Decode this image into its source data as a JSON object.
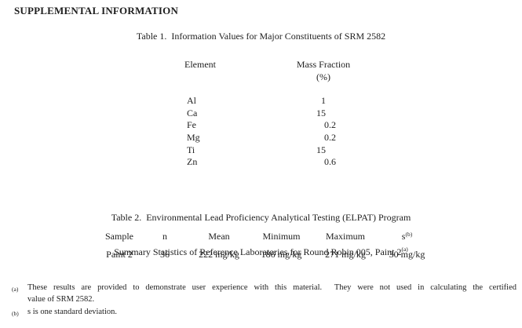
{
  "page": {
    "title": "SUPPLEMENTAL INFORMATION"
  },
  "table1": {
    "caption": "Table 1.  Information Values for Major Constituents of SRM 2582",
    "col1_header": "Element",
    "col2_header_line1": "Mass Fraction",
    "col2_header_line2": "(%)",
    "rows": [
      {
        "element": "Al",
        "value": "1"
      },
      {
        "element": "Ca",
        "value": "15"
      },
      {
        "element": "Fe",
        "value": "0.2"
      },
      {
        "element": "Mg",
        "value": "0.2"
      },
      {
        "element": "Ti",
        "value": "15"
      },
      {
        "element": "Zn",
        "value": "0.6"
      }
    ]
  },
  "table2": {
    "caption_line1": "Table 2.  Environmental Lead Proficiency Analytical Testing (ELPAT) Program",
    "caption_line2": "Summary Statistics of Reference Laboratories for Round Robin 005, Paint 2",
    "caption_footnote_marker": "(a)",
    "headers": {
      "sample": "Sample",
      "n": "n",
      "mean": "Mean",
      "minimum": "Minimum",
      "maximum": "Maximum",
      "s": "s",
      "s_footnote_marker": "(b)"
    },
    "row": {
      "sample": "Paint 2",
      "n": "36",
      "mean": "222 mg/kg",
      "minimum": "186 mg/kg",
      "maximum": "271 mg/kg",
      "s": "30 mg/kg"
    }
  },
  "footnotes": [
    {
      "marker": "(a)",
      "line1": "These results are provided to demonstrate user experience with this material.  They were not used in calculating the certified",
      "line2": "value of SRM 2582."
    },
    {
      "marker": "(b)",
      "line1": "s is one standard deviation."
    }
  ]
}
